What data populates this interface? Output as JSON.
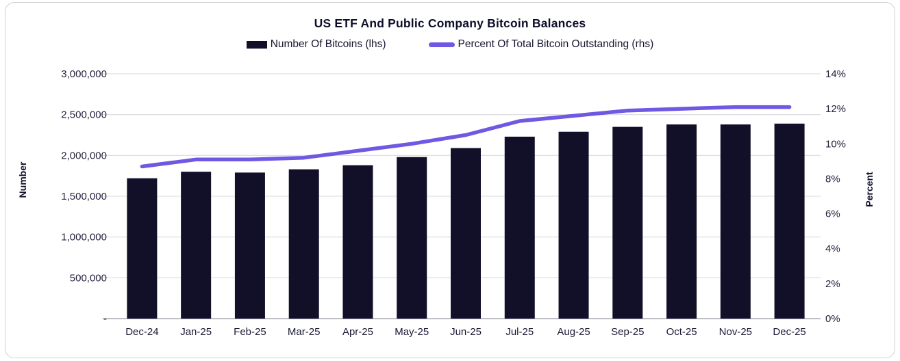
{
  "header": {
    "title": "US ETF And Public Company Bitcoin Balances"
  },
  "legend": {
    "bars_label": "Number Of Bitcoins (lhs)",
    "line_label": "Percent Of Total Bitcoin Outstanding (rhs)"
  },
  "colors": {
    "bar_fill": "#120f29",
    "line_stroke": "#7158e2",
    "gridline": "#d9d9de",
    "baseline": "#a9a9b3",
    "tick_text": "#1f1f3a",
    "title_text": "#0e0e2b",
    "frame_border": "#cdd0d4"
  },
  "chart_data": {
    "type": "bar",
    "title": "US ETF And Public Company Bitcoin Balances",
    "categories": [
      "Dec-24",
      "Jan-25",
      "Feb-25",
      "Mar-25",
      "Apr-25",
      "May-25",
      "Jun-25",
      "Jul-25",
      "Aug-25",
      "Sep-25",
      "Oct-25",
      "Nov-25",
      "Dec-25"
    ],
    "series": [
      {
        "name": "Number Of Bitcoins (lhs)",
        "type": "bar",
        "axis": "left",
        "values": [
          1720000,
          1800000,
          1790000,
          1830000,
          1880000,
          1980000,
          2090000,
          2230000,
          2290000,
          2350000,
          2380000,
          2380000,
          2390000
        ]
      },
      {
        "name": "Percent Of Total Bitcoin Outstanding (rhs)",
        "type": "line",
        "axis": "right",
        "values": [
          8.7,
          9.1,
          9.1,
          9.2,
          9.6,
          10.0,
          10.5,
          11.3,
          11.6,
          11.9,
          12.0,
          12.1,
          12.1
        ]
      }
    ],
    "left_axis": {
      "label": "Number",
      "min": 0,
      "max": 3000000,
      "step": 500000,
      "tick_labels_top_to_bottom": [
        "3,000,000",
        "2,500,000",
        "2,000,000",
        "1,500,000",
        "1,000,000",
        "500,000",
        "-"
      ]
    },
    "right_axis": {
      "label": "Percent",
      "min": 0,
      "max": 14,
      "step": 2,
      "tick_labels_top_to_bottom": [
        "14%",
        "12%",
        "10%",
        "8%",
        "6%",
        "4%",
        "2%",
        "0%"
      ]
    },
    "grid": "horizontal-on-left-axis-ticks",
    "legend_position": "top"
  }
}
